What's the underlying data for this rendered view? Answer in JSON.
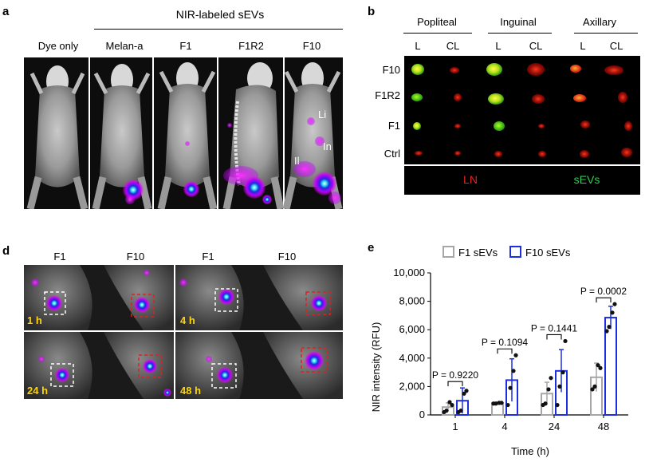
{
  "panel_a": {
    "letter": "a",
    "group_title": "NIR-labeled sEVs",
    "columns": [
      "Dye only",
      "Melan-a",
      "F1",
      "F1R2",
      "F10"
    ],
    "annotations": [
      "Li",
      "In",
      "Il"
    ]
  },
  "panel_b": {
    "letter": "b",
    "node_groups": [
      "Popliteal",
      "Inguinal",
      "Axillary"
    ],
    "sides": [
      "L",
      "CL",
      "L",
      "CL",
      "L",
      "CL"
    ],
    "rows": [
      "F10",
      "F1R2",
      "F1",
      "Ctrl"
    ],
    "legend": {
      "ln": "LN",
      "sevs": "sEVs"
    },
    "colors": {
      "ln": "#e8221c",
      "sevs": "#2bd14a"
    }
  },
  "panel_d": {
    "letter": "d",
    "columns": [
      "F1",
      "F10",
      "F1",
      "F10"
    ],
    "times": [
      "1 h",
      "4 h",
      "24 h",
      "48 h"
    ]
  },
  "panel_e": {
    "letter": "e",
    "legend": [
      "F1 sEVs",
      "F10 sEVs"
    ],
    "colors": {
      "f1": "#a6a6a6",
      "f10": "#1b2fe0"
    }
  },
  "chart_data": {
    "type": "bar",
    "title": "",
    "xlabel": "Time (h)",
    "ylabel": "NIR intensity (RFU)",
    "categories": [
      "1",
      "4",
      "24",
      "48"
    ],
    "ylim": [
      0,
      10000
    ],
    "yticks": [
      "0",
      "2,000",
      "4,000",
      "6,000",
      "8,000",
      "10,000"
    ],
    "yticks_values": [
      0,
      2000,
      4000,
      6000,
      8000,
      10000
    ],
    "series": [
      {
        "name": "F1 sEVs",
        "values": [
          550,
          850,
          1500,
          2650
        ],
        "errors": [
          300,
          50,
          800,
          1000
        ],
        "points": [
          [
            200,
            300,
            900,
            700
          ],
          [
            800,
            800,
            850,
            850
          ],
          [
            700,
            800,
            1800,
            2600
          ],
          [
            1800,
            2000,
            3500,
            3300
          ]
        ]
      },
      {
        "name": "F10 sEVs",
        "values": [
          1000,
          2450,
          3100,
          6850
        ],
        "errors": [
          900,
          1500,
          1500,
          800
        ],
        "points": [
          [
            200,
            300,
            1500,
            1700
          ],
          [
            700,
            1900,
            3100,
            4200
          ],
          [
            700,
            2000,
            3000,
            5200
          ],
          [
            5900,
            6200,
            7200,
            7800
          ]
        ]
      }
    ],
    "pvalues": [
      "P = 0.9220",
      "P = 0.1094",
      "P = 0.1441",
      "P = 0.0002"
    ]
  }
}
